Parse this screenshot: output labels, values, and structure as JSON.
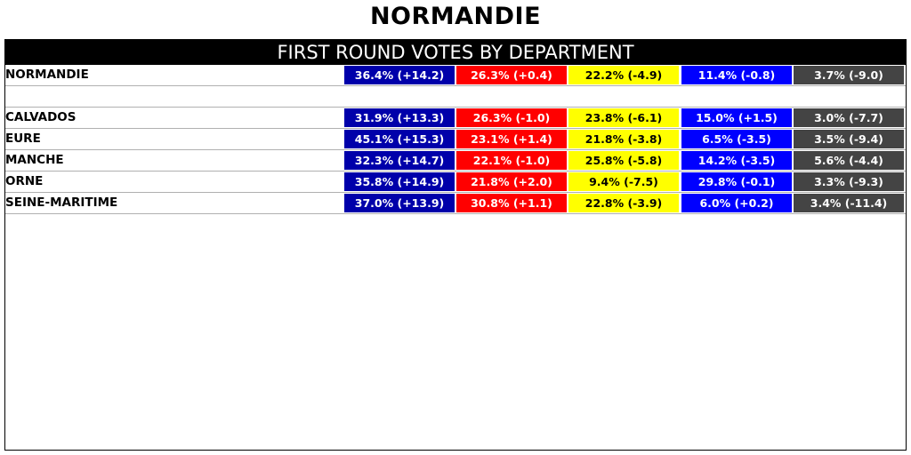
{
  "page": {
    "title": "NORMANDIE",
    "header": "FIRST ROUND VOTES BY DEPARTMENT"
  },
  "colors": {
    "party_bg": [
      "#0000AA",
      "#FF0000",
      "#FFFF00",
      "#0000FF",
      "#444444"
    ],
    "party_fg": [
      "#FFFFFF",
      "#FFFFFF",
      "#000000",
      "#FFFFFF",
      "#FFFFFF"
    ]
  },
  "chart_data": {
    "type": "table",
    "title": "NORMANDIE",
    "subtitle": "FIRST ROUND VOTES BY DEPARTMENT",
    "summary": {
      "name": "NORMANDIE",
      "cells": [
        "36.4% (+14.2)",
        "26.3% (+0.4)",
        "22.2% (-4.9)",
        "11.4% (-0.8)",
        "3.7% (-9.0)"
      ],
      "values": [
        36.4,
        26.3,
        22.2,
        11.4,
        3.7
      ],
      "changes": [
        14.2,
        0.4,
        -4.9,
        -0.8,
        -9.0
      ]
    },
    "rows": [
      {
        "name": "CALVADOS",
        "cells": [
          "31.9% (+13.3)",
          "26.3% (-1.0)",
          "23.8% (-6.1)",
          "15.0% (+1.5)",
          "3.0% (-7.7)"
        ],
        "values": [
          31.9,
          26.3,
          23.8,
          15.0,
          3.0
        ],
        "changes": [
          13.3,
          -1.0,
          -6.1,
          1.5,
          -7.7
        ]
      },
      {
        "name": "EURE",
        "cells": [
          "45.1% (+15.3)",
          "23.1% (+1.4)",
          "21.8% (-3.8)",
          "6.5% (-3.5)",
          "3.5% (-9.4)"
        ],
        "values": [
          45.1,
          23.1,
          21.8,
          6.5,
          3.5
        ],
        "changes": [
          15.3,
          1.4,
          -3.8,
          -3.5,
          -9.4
        ]
      },
      {
        "name": "MANCHE",
        "cells": [
          "32.3% (+14.7)",
          "22.1% (-1.0)",
          "25.8% (-5.8)",
          "14.2% (-3.5)",
          "5.6% (-4.4)"
        ],
        "values": [
          32.3,
          22.1,
          25.8,
          14.2,
          5.6
        ],
        "changes": [
          14.7,
          -1.0,
          -5.8,
          -3.5,
          -4.4
        ]
      },
      {
        "name": "ORNE",
        "cells": [
          "35.8% (+14.9)",
          "21.8% (+2.0)",
          "9.4% (-7.5)",
          "29.8% (-0.1)",
          "3.3% (-9.3)"
        ],
        "values": [
          35.8,
          21.8,
          9.4,
          29.8,
          3.3
        ],
        "changes": [
          14.9,
          2.0,
          -7.5,
          -0.1,
          -9.3
        ]
      },
      {
        "name": "SEINE-MARITIME",
        "cells": [
          "37.0% (+13.9)",
          "30.8% (+1.1)",
          "22.8% (-3.9)",
          "6.0% (+0.2)",
          "3.4% (-11.4)"
        ],
        "values": [
          37.0,
          30.8,
          22.8,
          6.0,
          3.4
        ],
        "changes": [
          13.9,
          1.1,
          -3.9,
          0.2,
          -11.4
        ]
      }
    ]
  }
}
